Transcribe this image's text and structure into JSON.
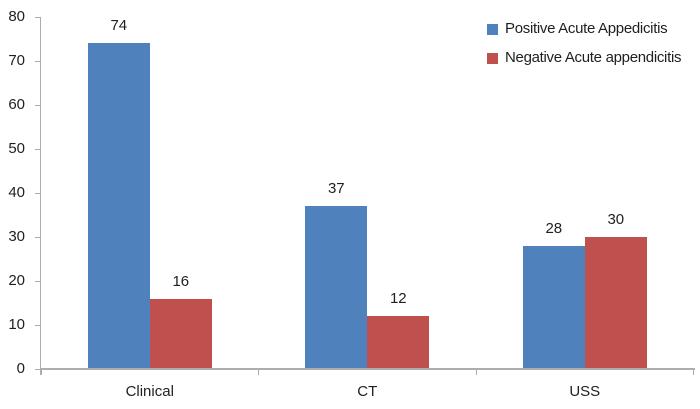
{
  "chart_data": {
    "type": "bar",
    "title": "",
    "categories": [
      "Clinical",
      "CT",
      "USS"
    ],
    "series": [
      {
        "name": "Positive Acute Appedicitis",
        "color": "#4F81BD",
        "values": [
          74,
          37,
          28
        ]
      },
      {
        "name": "Negative Acute appendicitis",
        "color": "#C0504D",
        "values": [
          16,
          12,
          30
        ]
      }
    ],
    "yticks": [
      0,
      10,
      20,
      30,
      40,
      50,
      60,
      70,
      80
    ],
    "ylim": [
      0,
      80
    ],
    "grid": false,
    "data_labels": true,
    "legend_position": "top-right",
    "colors": {
      "axis": "#ADADAD",
      "text": "#1F1F1F",
      "background": "#FFFFFF"
    }
  }
}
